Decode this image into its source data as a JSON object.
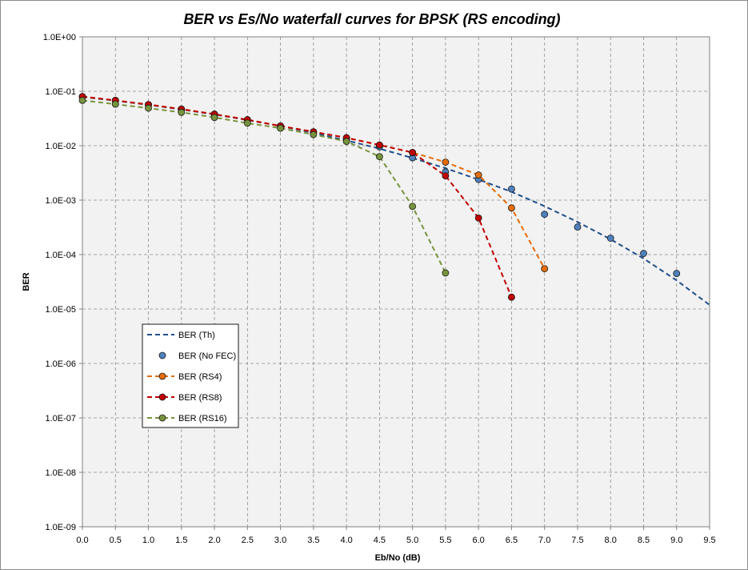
{
  "chart_data": {
    "type": "line",
    "title": "BER vs Es/No waterfall curves for BPSK (RS encoding)",
    "xlabel": "Eb/No (dB)",
    "ylabel": "BER",
    "xlim": [
      0,
      9.5
    ],
    "ylim": [
      1e-09,
      1
    ],
    "yscale": "log",
    "x_ticks": [
      "0.0",
      "0.5",
      "1.0",
      "1.5",
      "2.0",
      "2.5",
      "3.0",
      "3.5",
      "4.0",
      "4.5",
      "5.0",
      "5.5",
      "6.0",
      "6.5",
      "7.0",
      "7.5",
      "8.0",
      "8.5",
      "9.0",
      "9.5"
    ],
    "y_ticks": [
      "1.0E+00",
      "1.0E-01",
      "1.0E-02",
      "1.0E-03",
      "1.0E-04",
      "1.0E-05",
      "1.0E-06",
      "1.0E-07",
      "1.0E-08",
      "1.0E-09"
    ],
    "grid": true,
    "legend_position": "lower-left",
    "series": [
      {
        "name": "BER (Th)",
        "style": "dashed",
        "color": "#1f4e8c",
        "x": [
          0,
          0.5,
          1,
          1.5,
          2,
          2.5,
          3,
          3.5,
          4,
          4.5,
          5,
          5.5,
          6,
          6.5,
          7,
          7.5,
          8,
          8.5,
          9,
          9.5
        ],
        "y": [
          0.0786,
          0.0671,
          0.0563,
          0.0464,
          0.0375,
          0.0296,
          0.0229,
          0.0172,
          0.0125,
          0.00882,
          0.00595,
          0.00386,
          0.00239,
          0.00142,
          0.000773,
          0.000398,
          0.000191,
          8.47e-05,
          3.36e-05,
          1.19e-05
        ]
      },
      {
        "name": "BER (No FEC)",
        "style": "markers",
        "color": "#4f81bd",
        "x": [
          0,
          0.5,
          1,
          1.5,
          2,
          2.5,
          3,
          3.5,
          4,
          4.5,
          5,
          5.5,
          6,
          6.5,
          7,
          7.5,
          8,
          8.5,
          9
        ],
        "y": [
          0.079,
          0.067,
          0.056,
          0.046,
          0.038,
          0.03,
          0.023,
          0.017,
          0.0123,
          0.0095,
          0.006,
          0.0033,
          0.0024,
          0.0016,
          0.00055,
          0.00032,
          0.0002,
          0.000105,
          4.5e-05
        ]
      },
      {
        "name": "BER (RS4)",
        "style": "dashed-markers",
        "color": "#e46c0a",
        "x": [
          0,
          0.5,
          1,
          1.5,
          2,
          2.5,
          3,
          3.5,
          4,
          4.5,
          5,
          5.5,
          6,
          6.5,
          7
        ],
        "y": [
          0.08,
          0.068,
          0.057,
          0.047,
          0.038,
          0.03,
          0.023,
          0.018,
          0.014,
          0.0103,
          0.0075,
          0.005,
          0.0029,
          0.00072,
          5.5e-05
        ]
      },
      {
        "name": "BER (RS8)",
        "style": "dashed-markers",
        "color": "#c00000",
        "x": [
          0,
          0.5,
          1,
          1.5,
          2,
          2.5,
          3,
          3.5,
          4,
          4.5,
          5,
          5.5,
          6,
          6.5
        ],
        "y": [
          0.08,
          0.068,
          0.057,
          0.047,
          0.038,
          0.03,
          0.023,
          0.018,
          0.014,
          0.0103,
          0.0075,
          0.0028,
          0.00047,
          1.65e-05
        ]
      },
      {
        "name": "BER (RS16)",
        "style": "dashed-markers",
        "color": "#77933c",
        "x": [
          0,
          0.5,
          1,
          1.5,
          2,
          2.5,
          3,
          3.5,
          4,
          4.5,
          5,
          5.5
        ],
        "y": [
          0.068,
          0.058,
          0.049,
          0.041,
          0.033,
          0.026,
          0.021,
          0.016,
          0.012,
          0.0063,
          0.00077,
          4.6e-05
        ]
      }
    ]
  }
}
